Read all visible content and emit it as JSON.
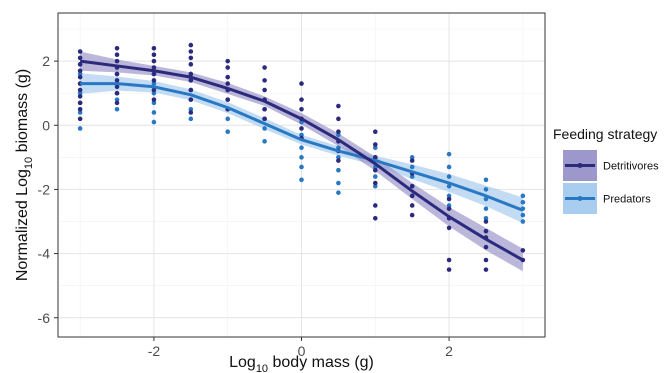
{
  "chart_data": {
    "type": "scatter",
    "xlabel": {
      "base": "Log",
      "subscript": "10",
      "rest": " body mass (g)"
    },
    "ylabel": {
      "prefix": "Normalized Log",
      "subscript": "10",
      "rest": " biomass (g)"
    },
    "xlim": [
      -3.3,
      3.3
    ],
    "ylim": [
      -6.6,
      3.5
    ],
    "xticks": [
      -2,
      0,
      2
    ],
    "yticks": [
      2,
      0,
      -2,
      -4,
      -6
    ],
    "xtick_labels": [
      "-2",
      "0",
      "2"
    ],
    "ytick_labels": [
      "2",
      "0",
      "-2",
      "-4",
      "-6"
    ],
    "grid": true,
    "legend": {
      "title": "Feeding strategy",
      "position": "right"
    },
    "series": [
      {
        "name": "Detritivores",
        "color": "#2b2a7c",
        "band_color": "#9d98cc",
        "fit": {
          "x": [
            -3,
            -2.5,
            -2,
            -1.5,
            -1,
            -0.5,
            0,
            0.5,
            1,
            1.5,
            2,
            2.5,
            3
          ],
          "y": [
            2.0,
            1.85,
            1.7,
            1.5,
            1.15,
            0.75,
            0.2,
            -0.45,
            -1.2,
            -2.05,
            -2.85,
            -3.55,
            -4.2
          ]
        },
        "band": {
          "upper": [
            2.3,
            2.05,
            1.85,
            1.65,
            1.32,
            0.9,
            0.38,
            -0.25,
            -0.98,
            -1.8,
            -2.55,
            -3.2,
            -3.85
          ],
          "lower": [
            1.7,
            1.65,
            1.55,
            1.35,
            0.98,
            0.6,
            0.02,
            -0.65,
            -1.42,
            -2.3,
            -3.15,
            -3.9,
            -4.55
          ]
        },
        "points": [
          {
            "x": -3,
            "y": [
              2.3,
              2.1,
              1.9,
              1.7,
              1.5,
              1.3,
              1.1,
              0.9,
              0.7,
              0.5,
              0.2
            ]
          },
          {
            "x": -2.5,
            "y": [
              2.4,
              2.2,
              2.0,
              1.8,
              1.6,
              1.4,
              1.2,
              1.0,
              0.7
            ]
          },
          {
            "x": -2,
            "y": [
              2.4,
              2.2,
              2.0,
              1.8,
              1.6,
              1.4,
              1.1,
              0.8
            ]
          },
          {
            "x": -1.5,
            "y": [
              2.5,
              2.3,
              2.1,
              1.9,
              1.6,
              1.4,
              1.1,
              0.8,
              0.4
            ]
          },
          {
            "x": -1,
            "y": [
              2.0,
              1.8,
              1.5,
              1.3,
              1.1,
              0.8,
              0.5
            ]
          },
          {
            "x": -0.5,
            "y": [
              1.8,
              1.4,
              1.1,
              0.8,
              0.5,
              0.2
            ]
          },
          {
            "x": 0,
            "y": [
              1.3,
              0.8,
              0.5,
              0.2,
              -0.1,
              -0.4
            ]
          },
          {
            "x": 0.5,
            "y": [
              0.6,
              0.2,
              -0.2,
              -0.5,
              -0.8,
              -1.1
            ]
          },
          {
            "x": 1,
            "y": [
              -0.2,
              -0.6,
              -1.0,
              -1.4,
              -1.8,
              -2.5,
              -2.9
            ]
          },
          {
            "x": 1.5,
            "y": [
              -1.1,
              -1.5,
              -1.9,
              -2.2,
              -2.5,
              -2.8
            ]
          },
          {
            "x": 2,
            "y": [
              -2.3,
              -2.6,
              -2.9,
              -3.2,
              -4.2,
              -4.5
            ]
          },
          {
            "x": 2.5,
            "y": [
              -3.0,
              -3.3,
              -3.5,
              -3.8,
              -4.2,
              -4.5
            ]
          },
          {
            "x": 3,
            "y": [
              -3.9,
              -4.2
            ]
          }
        ]
      },
      {
        "name": "Predators",
        "color": "#2878c3",
        "band_color": "#a9cdee",
        "fit": {
          "x": [
            -3,
            -2.5,
            -2,
            -1.5,
            -1,
            -0.5,
            0,
            0.5,
            1,
            1.5,
            2,
            2.5,
            3
          ],
          "y": [
            1.3,
            1.3,
            1.2,
            0.95,
            0.55,
            0.05,
            -0.45,
            -0.8,
            -1.1,
            -1.45,
            -1.8,
            -2.2,
            -2.65
          ]
        },
        "band": {
          "upper": [
            1.62,
            1.52,
            1.38,
            1.12,
            0.72,
            0.22,
            -0.3,
            -0.65,
            -0.95,
            -1.22,
            -1.52,
            -1.88,
            -2.25
          ],
          "lower": [
            0.98,
            1.08,
            1.02,
            0.78,
            0.38,
            -0.12,
            -0.6,
            -0.95,
            -1.25,
            -1.68,
            -2.08,
            -2.52,
            -3.05
          ]
        },
        "points": [
          {
            "x": -3,
            "y": [
              1.9,
              1.6,
              1.3,
              1.0,
              0.7,
              0.4,
              -0.1
            ]
          },
          {
            "x": -2.5,
            "y": [
              1.6,
              1.3,
              1.0,
              0.8,
              0.5
            ]
          },
          {
            "x": -2,
            "y": [
              1.6,
              1.3,
              1.0,
              0.7,
              0.4,
              0.1
            ]
          },
          {
            "x": -1.5,
            "y": [
              1.4,
              1.1,
              0.8,
              0.5,
              0.2
            ]
          },
          {
            "x": -1,
            "y": [
              1.1,
              0.8,
              0.5,
              0.2,
              -0.2
            ]
          },
          {
            "x": -0.5,
            "y": [
              0.5,
              0.2,
              -0.1,
              -0.5
            ]
          },
          {
            "x": 0,
            "y": [
              0.1,
              -0.3,
              -0.7,
              -1.0,
              -1.3,
              -1.7
            ]
          },
          {
            "x": 0.5,
            "y": [
              -0.3,
              -0.7,
              -1.0,
              -1.4,
              -1.8,
              -2.1
            ]
          },
          {
            "x": 1,
            "y": [
              -0.7,
              -1.0,
              -1.3,
              -1.6,
              -1.9
            ]
          },
          {
            "x": 1.5,
            "y": [
              -1.0,
              -1.3,
              -1.6,
              -1.9,
              -2.2
            ]
          },
          {
            "x": 2,
            "y": [
              -0.9,
              -1.3,
              -1.6,
              -1.9,
              -2.2,
              -2.5
            ]
          },
          {
            "x": 2.5,
            "y": [
              -1.7,
              -2.0,
              -2.3,
              -2.6,
              -2.9
            ]
          },
          {
            "x": 3,
            "y": [
              -2.2,
              -2.4,
              -2.6,
              -2.8,
              -3.0
            ]
          }
        ]
      }
    ]
  }
}
